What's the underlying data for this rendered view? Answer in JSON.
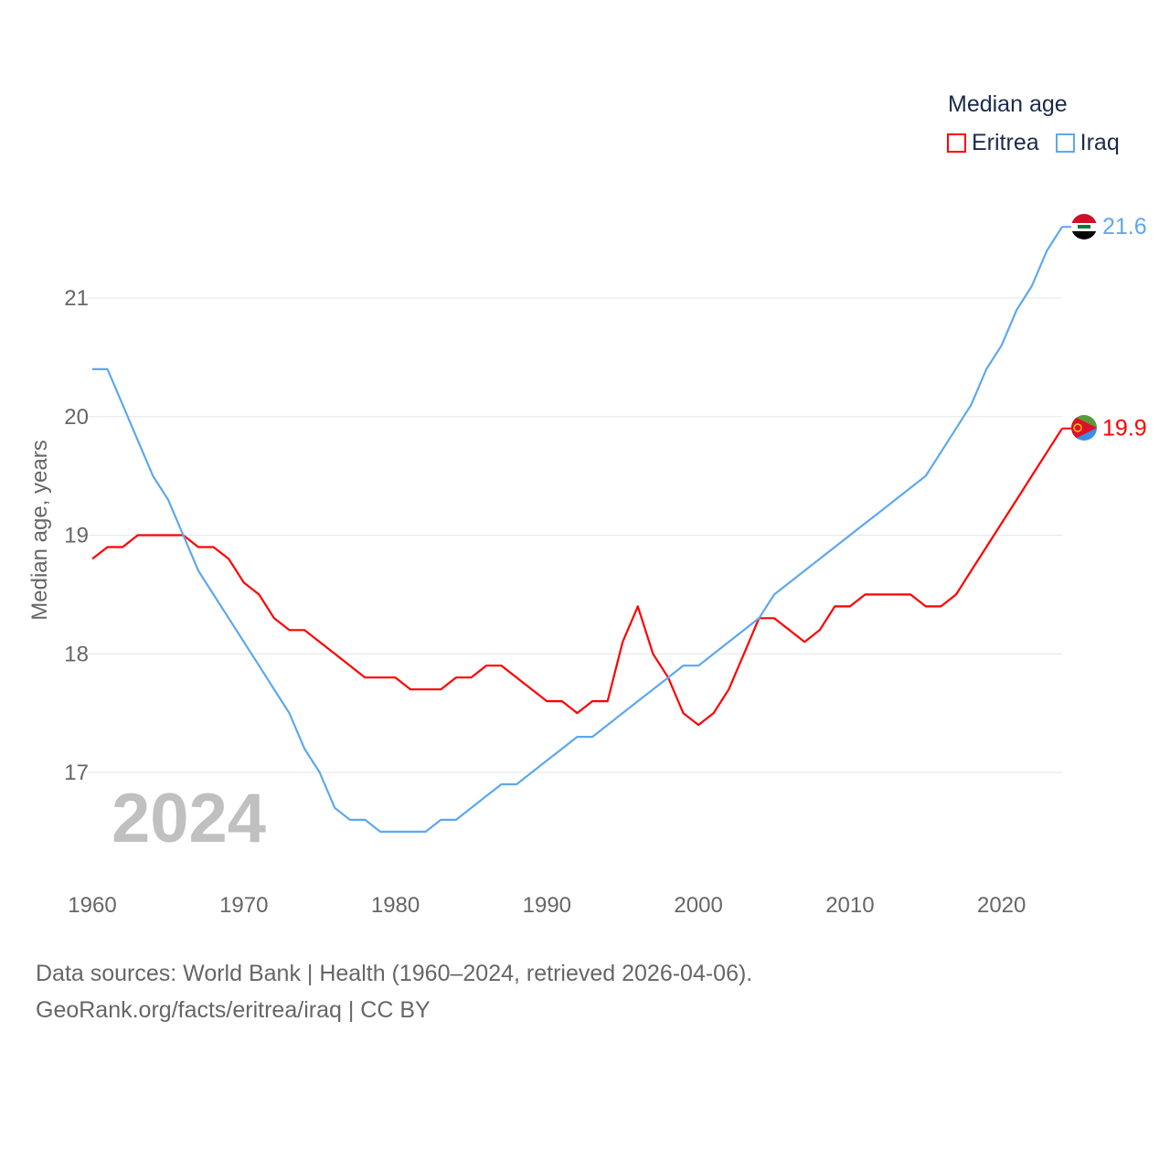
{
  "chart_data": {
    "type": "line",
    "title": "Median age",
    "ylabel": "Median age, years",
    "xlabel": "",
    "xlim": [
      1960,
      2024
    ],
    "ylim": [
      16.1,
      21.9
    ],
    "xticks": [
      "1960",
      "1970",
      "1980",
      "1990",
      "2000",
      "2010",
      "2020"
    ],
    "yticks": [
      "17",
      "18",
      "19",
      "20",
      "21"
    ],
    "grid": true,
    "legend_placement": "top-right",
    "year_label": "2024",
    "x": [
      1960,
      1961,
      1962,
      1963,
      1964,
      1965,
      1966,
      1967,
      1968,
      1969,
      1970,
      1971,
      1972,
      1973,
      1974,
      1975,
      1976,
      1977,
      1978,
      1979,
      1980,
      1981,
      1982,
      1983,
      1984,
      1985,
      1986,
      1987,
      1988,
      1989,
      1990,
      1991,
      1992,
      1993,
      1994,
      1995,
      1996,
      1997,
      1998,
      1999,
      2000,
      2001,
      2002,
      2003,
      2004,
      2005,
      2006,
      2007,
      2008,
      2009,
      2010,
      2011,
      2012,
      2013,
      2014,
      2015,
      2016,
      2017,
      2018,
      2019,
      2020,
      2021,
      2022,
      2023,
      2024
    ],
    "series": [
      {
        "name": "Eritrea",
        "color": "#ff0000",
        "end_label": "19.9",
        "values": [
          18.8,
          18.9,
          18.9,
          19.0,
          19.0,
          19.0,
          19.0,
          18.9,
          18.9,
          18.8,
          18.6,
          18.5,
          18.3,
          18.2,
          18.2,
          18.1,
          18.0,
          17.9,
          17.8,
          17.8,
          17.8,
          17.7,
          17.7,
          17.7,
          17.8,
          17.8,
          17.9,
          17.9,
          17.8,
          17.7,
          17.6,
          17.6,
          17.5,
          17.6,
          17.6,
          18.1,
          18.4,
          18.0,
          17.8,
          17.5,
          17.4,
          17.5,
          17.7,
          18.0,
          18.3,
          18.3,
          18.2,
          18.1,
          18.2,
          18.4,
          18.4,
          18.5,
          18.5,
          18.5,
          18.5,
          18.4,
          18.4,
          18.5,
          18.7,
          18.9,
          19.1,
          19.3,
          19.5,
          19.7,
          19.9
        ]
      },
      {
        "name": "Iraq",
        "color": "#5ea8ee",
        "end_label": "21.6",
        "values": [
          20.4,
          20.4,
          20.1,
          19.8,
          19.5,
          19.3,
          19.0,
          18.7,
          18.5,
          18.3,
          18.1,
          17.9,
          17.7,
          17.5,
          17.2,
          17.0,
          16.7,
          16.6,
          16.6,
          16.5,
          16.5,
          16.5,
          16.5,
          16.6,
          16.6,
          16.7,
          16.8,
          16.9,
          16.9,
          17.0,
          17.1,
          17.2,
          17.3,
          17.3,
          17.4,
          17.5,
          17.6,
          17.7,
          17.8,
          17.9,
          17.9,
          18.0,
          18.1,
          18.2,
          18.3,
          18.5,
          18.6,
          18.7,
          18.8,
          18.9,
          19.0,
          19.1,
          19.2,
          19.3,
          19.4,
          19.5,
          19.7,
          19.9,
          20.1,
          20.4,
          20.6,
          20.9,
          21.1,
          21.4,
          21.6
        ]
      }
    ]
  },
  "source": {
    "line1": "Data sources: World Bank | Health (1960–2024, retrieved 2026-04-06).",
    "line2": "GeoRank.org/facts/eritrea/iraq | CC BY"
  }
}
